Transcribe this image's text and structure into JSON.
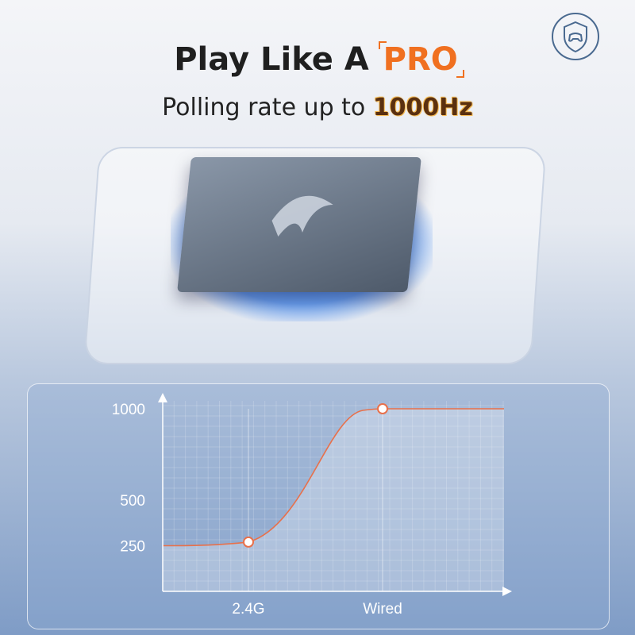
{
  "header": {
    "title_prefix": "Play Like A ",
    "title_highlight": "PRO",
    "subtitle_prefix": "Polling rate up to ",
    "subtitle_highlight": "1000Hz"
  },
  "icons": {
    "badge": "shield-gamepad-icon",
    "chip_logo": "brand-logo-icon"
  },
  "colors": {
    "accent": "#f07020",
    "line": "#e8704a"
  },
  "chart_data": {
    "type": "line",
    "title": "",
    "xlabel": "",
    "ylabel": "",
    "categories": [
      "2.4G",
      "Wired"
    ],
    "yticks": [
      250,
      500,
      1000
    ],
    "ytick_labels": [
      "250",
      "500",
      "1000"
    ],
    "ylim": [
      0,
      1000
    ],
    "series": [
      {
        "values": [
          270,
          1000
        ]
      }
    ],
    "grid": true
  }
}
